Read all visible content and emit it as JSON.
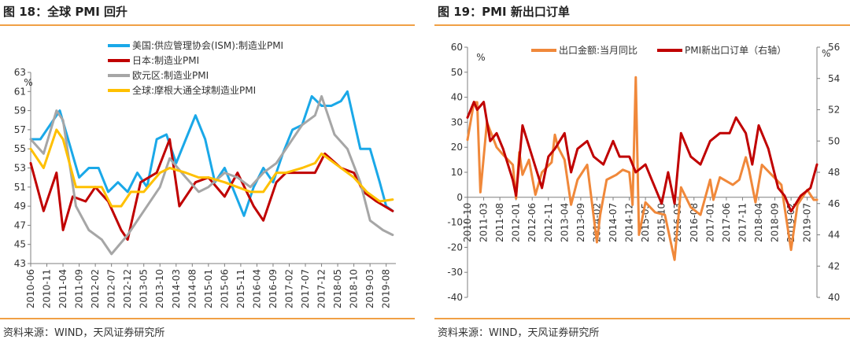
{
  "panels": [
    {
      "title": "图 18：全球 PMI 回升",
      "source": "资料来源：WIND，天风证券研究所"
    },
    {
      "title": "图 19：PMI 新出口订单",
      "source": "资料来源：WIND，天风证券研究所"
    }
  ],
  "chart_data": [
    {
      "type": "line",
      "title": "图 18：全球 PMI 回升",
      "ylabel": "%",
      "ylim": [
        43,
        63
      ],
      "yticks": [
        43,
        45,
        47,
        49,
        51,
        53,
        55,
        57,
        59,
        61,
        63
      ],
      "xlim": [
        "2010-06",
        "2019-11"
      ],
      "xticks": [
        "2010-06",
        "2010-11",
        "2011-04",
        "2011-09",
        "2012-02",
        "2012-07",
        "2012-12",
        "2013-05",
        "2013-10",
        "2014-03",
        "2014-08",
        "2015-01",
        "2015-06",
        "2015-11",
        "2016-04",
        "2016-09",
        "2017-02",
        "2017-07",
        "2017-12",
        "2018-05",
        "2018-10",
        "2019-03",
        "2019-08"
      ],
      "legend_position": "top-center",
      "series": [
        {
          "name": "美国:供应管理协会(ISM):制造业PMI",
          "color": "#1aa8e8",
          "x": [
            "2010-06",
            "2010-09",
            "2011-01",
            "2011-03",
            "2011-06",
            "2011-09",
            "2011-12",
            "2012-03",
            "2012-06",
            "2012-09",
            "2012-12",
            "2013-03",
            "2013-06",
            "2013-09",
            "2013-12",
            "2014-03",
            "2014-06",
            "2014-09",
            "2014-12",
            "2015-03",
            "2015-06",
            "2015-09",
            "2015-12",
            "2016-03",
            "2016-06",
            "2016-09",
            "2016-12",
            "2017-03",
            "2017-06",
            "2017-09",
            "2017-12",
            "2018-03",
            "2018-06",
            "2018-08",
            "2018-10",
            "2018-12",
            "2019-03",
            "2019-06",
            "2019-08",
            "2019-10"
          ],
          "values": [
            56.0,
            56.0,
            58.0,
            59.0,
            55.5,
            52.0,
            53.0,
            53.0,
            50.5,
            51.5,
            50.5,
            52.5,
            51.0,
            56.0,
            56.5,
            53.5,
            56.0,
            58.5,
            56.0,
            51.5,
            53.0,
            50.5,
            48.0,
            51.0,
            53.0,
            51.5,
            54.5,
            57.0,
            57.5,
            60.5,
            59.5,
            59.5,
            60.0,
            61.0,
            58.0,
            55.0,
            55.0,
            51.5,
            49.0,
            48.5
          ]
        },
        {
          "name": "日本:制造业PMI",
          "color": "#c00000",
          "x": [
            "2010-06",
            "2010-10",
            "2011-02",
            "2011-04",
            "2011-07",
            "2011-11",
            "2012-02",
            "2012-06",
            "2012-10",
            "2012-12",
            "2013-04",
            "2013-09",
            "2014-01",
            "2014-04",
            "2014-09",
            "2015-01",
            "2015-06",
            "2015-10",
            "2016-03",
            "2016-06",
            "2016-10",
            "2017-01",
            "2017-06",
            "2017-10",
            "2018-01",
            "2018-06",
            "2018-10",
            "2019-01",
            "2019-05",
            "2019-10"
          ],
          "values": [
            53.5,
            48.5,
            52.5,
            46.5,
            50.0,
            49.5,
            51.0,
            49.5,
            46.5,
            45.5,
            51.5,
            52.5,
            56.0,
            49.0,
            51.5,
            52.0,
            50.0,
            52.5,
            49.0,
            47.5,
            51.5,
            52.5,
            52.5,
            52.5,
            54.5,
            53.0,
            52.5,
            50.5,
            49.5,
            48.5
          ]
        },
        {
          "name": "欧元区:制造业PMI",
          "color": "#a6a6a6",
          "x": [
            "2010-06",
            "2010-10",
            "2011-02",
            "2011-04",
            "2011-08",
            "2011-12",
            "2012-04",
            "2012-07",
            "2012-12",
            "2013-05",
            "2013-10",
            "2014-01",
            "2014-06",
            "2014-10",
            "2015-01",
            "2015-06",
            "2015-10",
            "2016-02",
            "2016-06",
            "2016-10",
            "2017-01",
            "2017-06",
            "2017-10",
            "2017-12",
            "2018-04",
            "2018-08",
            "2018-12",
            "2019-03",
            "2019-07",
            "2019-10"
          ],
          "values": [
            56.0,
            54.5,
            59.0,
            58.0,
            49.0,
            46.5,
            45.5,
            44.0,
            46.0,
            48.5,
            51.0,
            54.0,
            52.0,
            50.5,
            51.0,
            52.5,
            52.0,
            51.0,
            52.5,
            53.5,
            55.0,
            57.5,
            58.5,
            60.5,
            56.5,
            55.0,
            51.5,
            47.5,
            46.5,
            46.0
          ]
        },
        {
          "name": "全球:摩根大通全球制造业PMI",
          "color": "#ffc000",
          "x": [
            "2010-06",
            "2010-10",
            "2011-02",
            "2011-04",
            "2011-08",
            "2011-12",
            "2012-04",
            "2012-07",
            "2012-10",
            "2013-01",
            "2013-05",
            "2013-10",
            "2014-01",
            "2014-06",
            "2014-10",
            "2015-01",
            "2015-06",
            "2015-10",
            "2016-02",
            "2016-06",
            "2016-10",
            "2017-01",
            "2017-06",
            "2017-10",
            "2017-12",
            "2018-04",
            "2018-10",
            "2019-02",
            "2019-06",
            "2019-10"
          ],
          "values": [
            55.0,
            53.0,
            57.0,
            56.0,
            51.0,
            51.0,
            51.0,
            49.0,
            49.0,
            50.5,
            50.5,
            52.5,
            53.0,
            52.5,
            52.0,
            52.0,
            51.5,
            51.0,
            50.5,
            50.5,
            52.5,
            52.5,
            53.0,
            53.5,
            54.5,
            53.5,
            52.0,
            50.5,
            49.5,
            49.7
          ]
        }
      ]
    },
    {
      "type": "line",
      "title": "图 19：PMI 新出口订单",
      "ylabel": "%",
      "ylabel_right": "%",
      "ylim": [
        -40,
        60
      ],
      "yticks": [
        -40,
        -30,
        -20,
        -10,
        0,
        10,
        20,
        30,
        40,
        50,
        60
      ],
      "ylim_right": [
        40,
        56
      ],
      "yticks_right": [
        40,
        42,
        44,
        46,
        48,
        50,
        52,
        54,
        56
      ],
      "xlim": [
        "2010-10",
        "2019-10"
      ],
      "xticks": [
        "2010-10",
        "2011-03",
        "2011-08",
        "2012-01",
        "2012-06",
        "2012-11",
        "2013-04",
        "2013-09",
        "2014-02",
        "2014-07",
        "2014-12",
        "2015-05",
        "2015-10",
        "2016-03",
        "2016-08",
        "2017-01",
        "2017-06",
        "2017-11",
        "2018-04",
        "2018-09",
        "2019-02",
        "2019-07"
      ],
      "legend_position": "top",
      "series": [
        {
          "name": "出口金额:当月同比",
          "color": "#f0883a",
          "axis": "left",
          "x": [
            "2010-10",
            "2010-12",
            "2011-01",
            "2011-02",
            "2011-04",
            "2011-07",
            "2011-09",
            "2011-12",
            "2012-01",
            "2012-02",
            "2012-03",
            "2012-05",
            "2012-07",
            "2012-09",
            "2012-12",
            "2013-01",
            "2013-02",
            "2013-04",
            "2013-06",
            "2013-08",
            "2013-11",
            "2014-02",
            "2014-03",
            "2014-05",
            "2014-08",
            "2014-10",
            "2014-12",
            "2015-01",
            "2015-02",
            "2015-03",
            "2015-05",
            "2015-08",
            "2015-11",
            "2016-02",
            "2016-04",
            "2016-07",
            "2016-10",
            "2017-01",
            "2017-02",
            "2017-04",
            "2017-08",
            "2017-10",
            "2017-12",
            "2018-01",
            "2018-03",
            "2018-05",
            "2018-08",
            "2018-11",
            "2018-12",
            "2019-02",
            "2019-04",
            "2019-07",
            "2019-09",
            "2019-10"
          ],
          "values": [
            23,
            38,
            38,
            2,
            30,
            20,
            17,
            13,
            -0.5,
            18,
            9,
            15,
            1,
            10,
            14,
            25,
            20,
            15,
            -3,
            7,
            13,
            -18,
            -7,
            7,
            9,
            11,
            10,
            -3,
            48,
            -15,
            -2,
            -6,
            -7,
            -25,
            4,
            -4,
            -7,
            7,
            -1,
            8,
            5,
            7,
            16,
            11,
            -2,
            13,
            9,
            5,
            -4,
            -21,
            -3,
            3,
            -1,
            -1
          ]
        },
        {
          "name": "PMI新出口订单（右轴）",
          "color": "#c00000",
          "axis": "right",
          "x": [
            "2010-10",
            "2010-12",
            "2011-01",
            "2011-03",
            "2011-05",
            "2011-07",
            "2011-09",
            "2011-12",
            "2012-01",
            "2012-03",
            "2012-06",
            "2012-09",
            "2012-11",
            "2013-01",
            "2013-04",
            "2013-06",
            "2013-08",
            "2013-11",
            "2014-01",
            "2014-04",
            "2014-07",
            "2014-09",
            "2014-12",
            "2015-02",
            "2015-05",
            "2015-07",
            "2015-10",
            "2015-12",
            "2016-02",
            "2016-04",
            "2016-07",
            "2016-10",
            "2017-01",
            "2017-04",
            "2017-07",
            "2017-09",
            "2017-12",
            "2018-02",
            "2018-04",
            "2018-07",
            "2018-10",
            "2018-12",
            "2019-02",
            "2019-05",
            "2019-08",
            "2019-10"
          ],
          "values": [
            51.5,
            52.5,
            52.0,
            52.5,
            50.0,
            50.5,
            49.5,
            47.5,
            46.5,
            51.0,
            49.0,
            47.0,
            49.0,
            49.5,
            50.5,
            48.0,
            49.5,
            50.0,
            49.0,
            48.5,
            50.0,
            49.0,
            49.0,
            48.0,
            48.5,
            47.5,
            46.0,
            48.0,
            46.0,
            50.5,
            49.0,
            48.5,
            50.0,
            50.5,
            50.5,
            51.5,
            50.5,
            48.5,
            51.0,
            49.5,
            47.0,
            46.5,
            45.5,
            46.5,
            47.0,
            48.5
          ]
        }
      ]
    }
  ]
}
